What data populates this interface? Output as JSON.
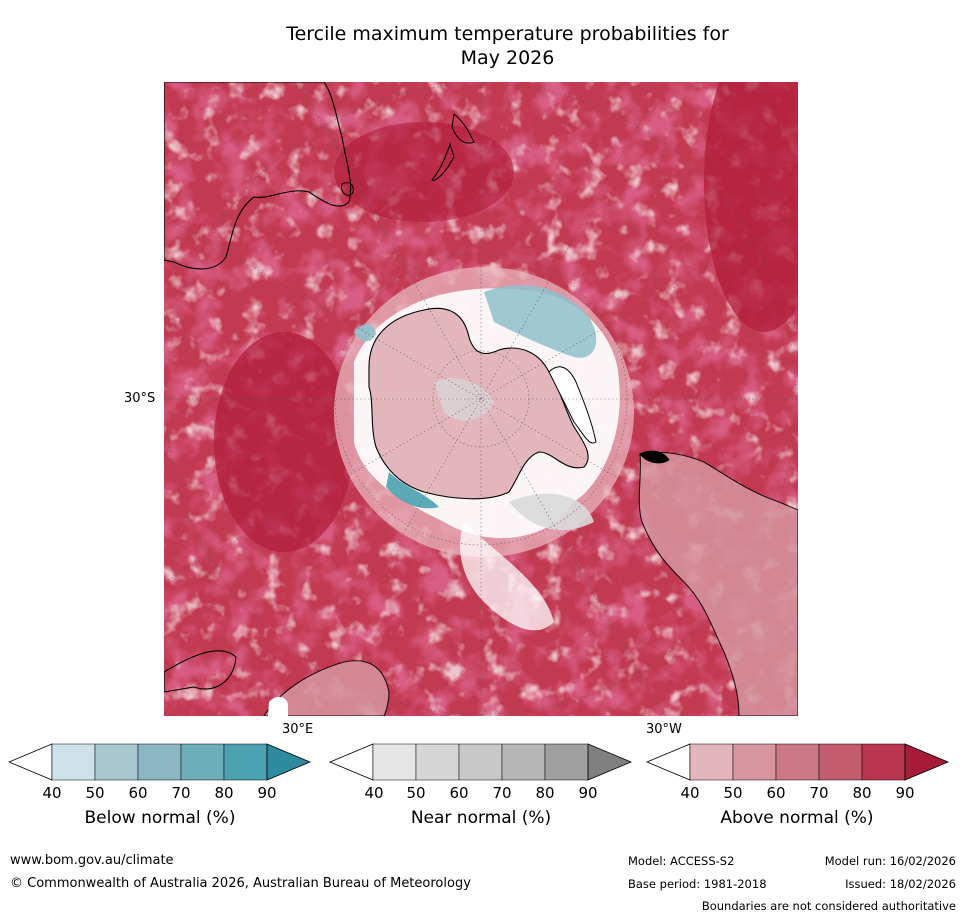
{
  "title": {
    "line1": "Tercile maximum temperature probabilities for",
    "line2": "May 2026"
  },
  "map": {
    "lat_label": "30°S",
    "lon_label_east": "30°E",
    "lon_label_west": "30°W",
    "colors": {
      "ocean_base": "#c23a52",
      "deep_red": "#b11d3a",
      "mid_red": "#d47a88",
      "light_red": "#e8b5bd",
      "white": "#ffffff",
      "near_grey": "#d9d9d9",
      "below_blue": "#8fbfcb",
      "coast": "#000000"
    }
  },
  "colorbars": [
    {
      "name": "below",
      "label": "Below normal (%)",
      "ticks": [
        "40",
        "50",
        "60",
        "70",
        "80",
        "90"
      ],
      "colors": [
        "#ffffff",
        "#cde2e8",
        "#a8c8d0",
        "#8bb6c3",
        "#6eaebb",
        "#4aa1b0",
        "#2e8a9e"
      ]
    },
    {
      "name": "near",
      "label": "Near normal (%)",
      "ticks": [
        "40",
        "50",
        "60",
        "70",
        "80",
        "90"
      ],
      "colors": [
        "#ffffff",
        "#e6e6e6",
        "#d6d6d6",
        "#c8c8c8",
        "#b6b6b6",
        "#a0a0a0",
        "#808080"
      ]
    },
    {
      "name": "above",
      "label": "Above normal (%)",
      "ticks": [
        "40",
        "50",
        "60",
        "70",
        "80",
        "90"
      ],
      "colors": [
        "#ffffff",
        "#e2b6bc",
        "#d6959f",
        "#cc7885",
        "#c35d6d",
        "#b83650",
        "#a61c38"
      ]
    }
  ],
  "footer": {
    "website": "www.bom.gov.au/climate",
    "copyright": "© Commonwealth of Australia 2026, Australian Bureau of Meteorology",
    "model": "Model: ACCESS-S2",
    "base_period": "Base period: 1981-2018",
    "model_run": "Model run: 16/02/2026",
    "issued": "Issued: 18/02/2026",
    "disclaimer": "Boundaries are not considered authoritative"
  }
}
